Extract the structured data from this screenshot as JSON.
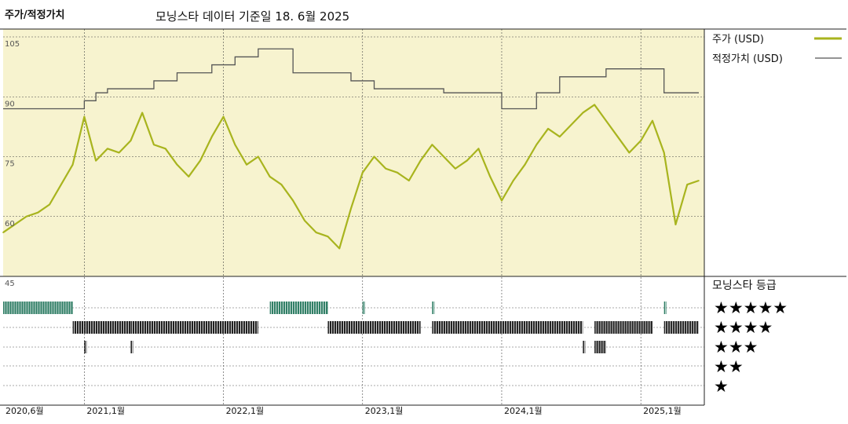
{
  "header": {
    "title": "주가/적정가치",
    "subtitle": "모닝스타 데이터 기준일 18. 6월 2025"
  },
  "legend": {
    "price": "주가 (USD)",
    "fair_value": "적정가치 (USD)",
    "rating_title": "모닝스타 등급",
    "stars": [
      "★★★★★",
      "★★★★",
      "★★★",
      "★★",
      "★"
    ]
  },
  "colors": {
    "price_line": "#a8b41e",
    "fair_value_line": "#555555",
    "plot_bg": "#f7f3cf",
    "five_star": "#2e7d64",
    "four_star": "#222222",
    "three_star": "#222222"
  },
  "chart_data": [
    {
      "type": "line",
      "title": "",
      "ylim": [
        45,
        105
      ],
      "yticks": [
        "105",
        "90",
        "75",
        "60",
        "45"
      ],
      "x_ticks": [
        "2020,6월",
        "2021,1월",
        "2022,1월",
        "2023,1월",
        "2024,1월",
        "2025,1월"
      ],
      "x_tick_dates": [
        "2020-06",
        "2021-01",
        "2022-01",
        "2023-01",
        "2024-01",
        "2025-01"
      ],
      "x_range": [
        "2020-06",
        "2025-06"
      ],
      "grid": true,
      "legend_position": "right",
      "series": [
        {
          "name": "주가 (USD)",
          "points": [
            [
              "2020-06",
              56
            ],
            [
              "2020-07",
              58
            ],
            [
              "2020-08",
              60
            ],
            [
              "2020-09",
              61
            ],
            [
              "2020-10",
              63
            ],
            [
              "2020-11",
              68
            ],
            [
              "2020-12",
              73
            ],
            [
              "2021-01",
              85
            ],
            [
              "2021-02",
              74
            ],
            [
              "2021-03",
              77
            ],
            [
              "2021-04",
              76
            ],
            [
              "2021-05",
              79
            ],
            [
              "2021-06",
              86
            ],
            [
              "2021-07",
              78
            ],
            [
              "2021-08",
              77
            ],
            [
              "2021-09",
              73
            ],
            [
              "2021-10",
              70
            ],
            [
              "2021-11",
              74
            ],
            [
              "2021-12",
              80
            ],
            [
              "2022-01",
              85
            ],
            [
              "2022-02",
              78
            ],
            [
              "2022-03",
              73
            ],
            [
              "2022-04",
              75
            ],
            [
              "2022-05",
              70
            ],
            [
              "2022-06",
              68
            ],
            [
              "2022-07",
              64
            ],
            [
              "2022-08",
              59
            ],
            [
              "2022-09",
              56
            ],
            [
              "2022-10",
              55
            ],
            [
              "2022-11",
              52
            ],
            [
              "2022-12",
              62
            ],
            [
              "2023-01",
              71
            ],
            [
              "2023-02",
              75
            ],
            [
              "2023-03",
              72
            ],
            [
              "2023-04",
              71
            ],
            [
              "2023-05",
              69
            ],
            [
              "2023-06",
              74
            ],
            [
              "2023-07",
              78
            ],
            [
              "2023-08",
              75
            ],
            [
              "2023-09",
              72
            ],
            [
              "2023-10",
              74
            ],
            [
              "2023-11",
              77
            ],
            [
              "2023-12",
              70
            ],
            [
              "2024-01",
              64
            ],
            [
              "2024-02",
              69
            ],
            [
              "2024-03",
              73
            ],
            [
              "2024-04",
              78
            ],
            [
              "2024-05",
              82
            ],
            [
              "2024-06",
              80
            ],
            [
              "2024-07",
              83
            ],
            [
              "2024-08",
              86
            ],
            [
              "2024-09",
              88
            ],
            [
              "2024-10",
              84
            ],
            [
              "2024-11",
              80
            ],
            [
              "2024-12",
              76
            ],
            [
              "2025-01",
              79
            ],
            [
              "2025-02",
              84
            ],
            [
              "2025-03",
              76
            ],
            [
              "2025-04",
              58
            ],
            [
              "2025-05",
              68
            ],
            [
              "2025-06",
              69
            ]
          ]
        },
        {
          "name": "적정가치 (USD)",
          "step": true,
          "points": [
            [
              "2020-06",
              87
            ],
            [
              "2021-01",
              87
            ],
            [
              "2021-01",
              89
            ],
            [
              "2021-02",
              91
            ],
            [
              "2021-03",
              92
            ],
            [
              "2021-07",
              94
            ],
            [
              "2021-09",
              96
            ],
            [
              "2021-12",
              98
            ],
            [
              "2022-02",
              100
            ],
            [
              "2022-04",
              102
            ],
            [
              "2022-07",
              102
            ],
            [
              "2022-07",
              96
            ],
            [
              "2022-12",
              94
            ],
            [
              "2023-02",
              92
            ],
            [
              "2023-07",
              92
            ],
            [
              "2023-08",
              91
            ],
            [
              "2023-12",
              91
            ],
            [
              "2024-01",
              87
            ],
            [
              "2024-04",
              87
            ],
            [
              "2024-04",
              91
            ],
            [
              "2024-06",
              95
            ],
            [
              "2024-10",
              97
            ],
            [
              "2025-02",
              97
            ],
            [
              "2025-03",
              91
            ],
            [
              "2025-06",
              91
            ]
          ]
        }
      ]
    },
    {
      "type": "timeline",
      "title": "모닝스타 등급",
      "ratings": [
        {
          "stars": 5,
          "periods": [
            [
              "2020-06",
              "2020-12"
            ],
            [
              "2022-05",
              "2022-10"
            ],
            [
              "2023-01",
              "2023-01"
            ],
            [
              "2023-07",
              "2023-07"
            ],
            [
              "2025-03",
              "2025-03"
            ]
          ]
        },
        {
          "stars": 4,
          "periods": [
            [
              "2020-12",
              "2021-01"
            ],
            [
              "2021-01",
              "2021-05"
            ],
            [
              "2021-05",
              "2022-04"
            ],
            [
              "2022-10",
              "2023-06"
            ],
            [
              "2023-07",
              "2024-08"
            ],
            [
              "2024-09",
              "2025-02"
            ],
            [
              "2025-03",
              "2025-06"
            ]
          ]
        },
        {
          "stars": 3,
          "periods": [
            [
              "2021-01",
              "2021-01"
            ],
            [
              "2021-05",
              "2021-05"
            ],
            [
              "2024-08",
              "2024-08"
            ],
            [
              "2024-09",
              "2024-10"
            ]
          ]
        },
        {
          "stars": 2,
          "periods": []
        },
        {
          "stars": 1,
          "periods": []
        }
      ]
    }
  ]
}
